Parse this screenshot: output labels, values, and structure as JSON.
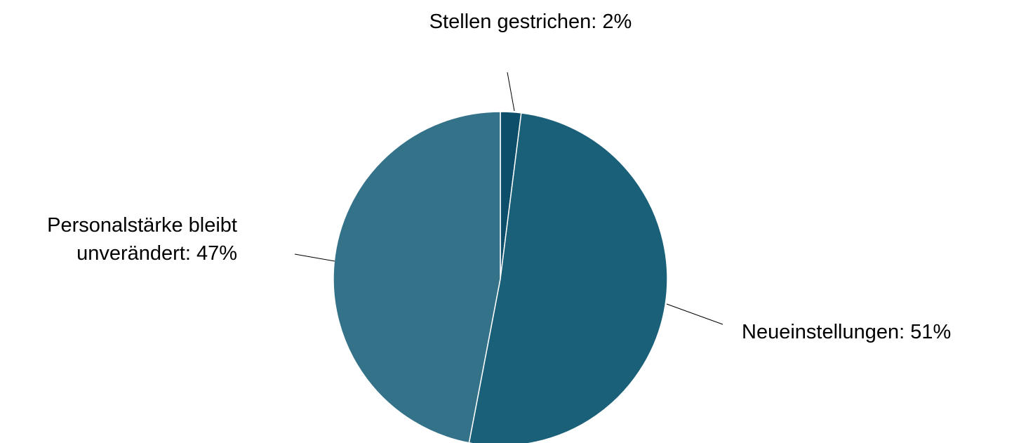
{
  "chart_data": {
    "type": "pie",
    "values": [
      2,
      51,
      47
    ],
    "value_labels": [
      "Stellen gestrichen: 2%",
      "Neueinstellungen: 51%",
      "Personalstärke bleibt\nunverändert: 47%"
    ],
    "colors": [
      "#0d4f6b",
      "#1b6079",
      "#347289"
    ]
  }
}
